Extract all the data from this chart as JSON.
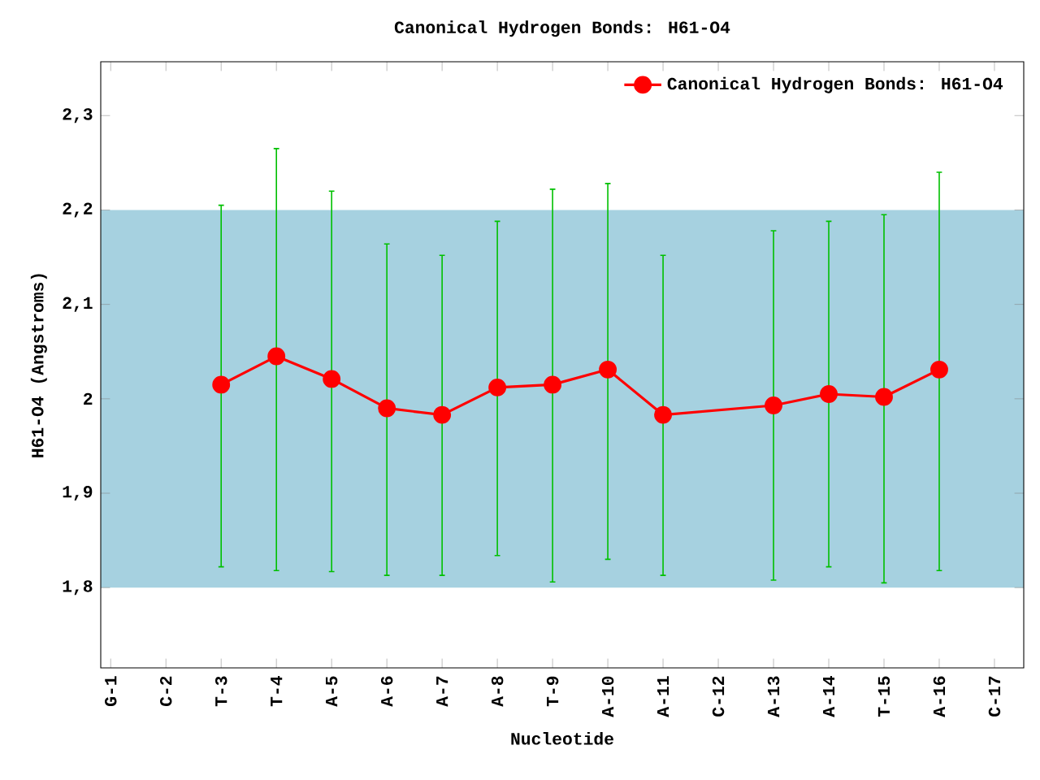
{
  "chart_data": {
    "type": "line",
    "title": "Canonical Hydrogen Bonds: H61-O4",
    "xlabel": "Nucleotide",
    "ylabel": "H61-O4 (Angstroms)",
    "categories": [
      "G-1",
      "C-2",
      "T-3",
      "T-4",
      "A-5",
      "A-6",
      "A-7",
      "A-8",
      "T-9",
      "A-10",
      "A-11",
      "C-12",
      "A-13",
      "A-14",
      "T-15",
      "A-16",
      "C-17"
    ],
    "series": [
      {
        "name": "Canonical Hydrogen Bonds: H61-O4",
        "color": "#ff0000",
        "values": [
          null,
          null,
          2.015,
          2.045,
          2.021,
          1.99,
          1.983,
          2.012,
          2.015,
          2.031,
          1.983,
          null,
          1.993,
          2.005,
          2.002,
          2.031,
          null
        ],
        "errors": [
          null,
          null,
          [
            1.822,
            2.205
          ],
          [
            1.818,
            2.265
          ],
          [
            1.817,
            2.22
          ],
          [
            1.813,
            2.164
          ],
          [
            1.813,
            2.152
          ],
          [
            1.834,
            2.188
          ],
          [
            1.806,
            2.222
          ],
          [
            1.83,
            2.228
          ],
          [
            1.813,
            2.152
          ],
          null,
          [
            1.808,
            2.178
          ],
          [
            1.822,
            2.188
          ],
          [
            1.805,
            2.195
          ],
          [
            1.818,
            2.24
          ],
          null
        ]
      }
    ],
    "ylim": [
      1.715,
      2.357
    ],
    "yticks": [
      {
        "value": 1.8,
        "label": "1,8"
      },
      {
        "value": 1.9,
        "label": "1,9"
      },
      2,
      {
        "value": 2.1,
        "label": "2,1"
      },
      {
        "value": 2.2,
        "label": "2,2"
      },
      {
        "value": 2.3,
        "label": "2,3"
      }
    ],
    "bands": [
      {
        "axis": "y",
        "from": 1.8,
        "to": 2.2,
        "color": "#a6d1e0"
      }
    ],
    "legend": "top right",
    "marker": "circle",
    "line_style": "solid",
    "grid": false
  }
}
